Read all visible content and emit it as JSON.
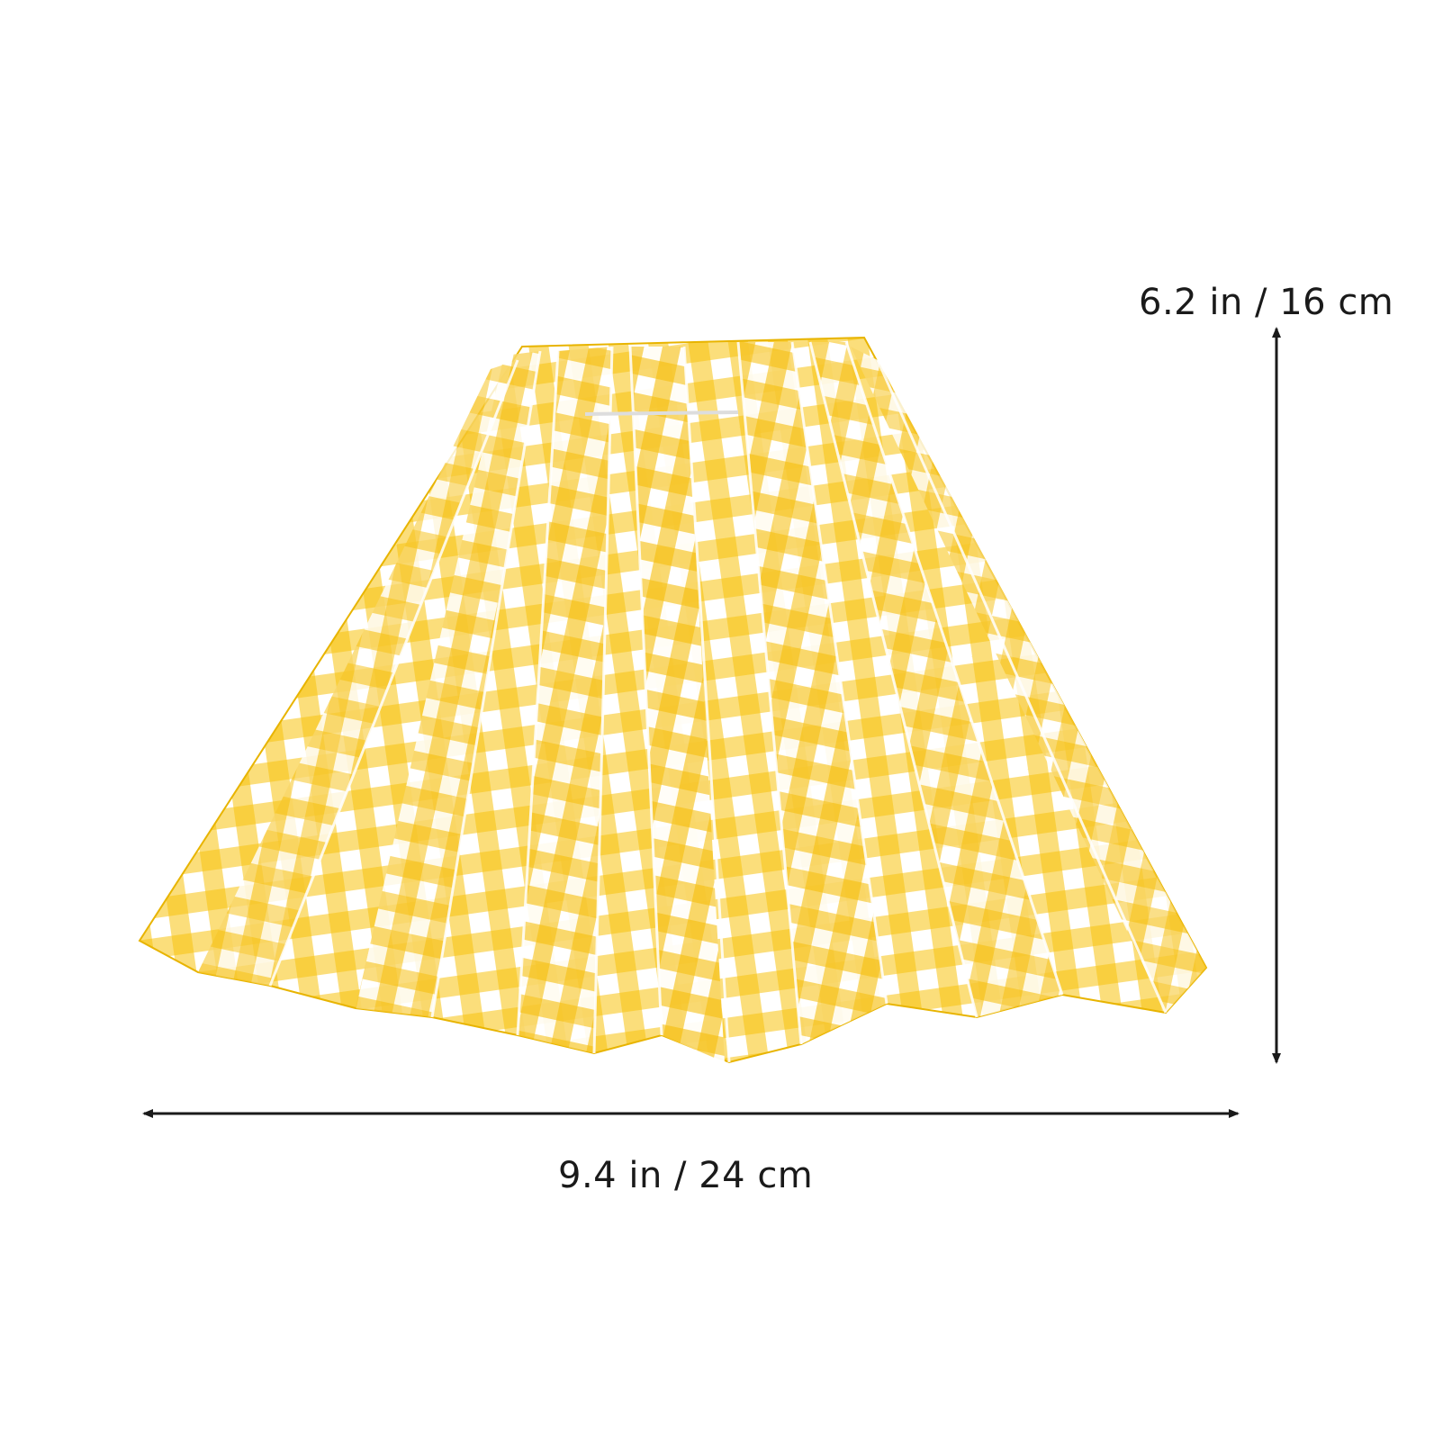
{
  "colors": {
    "gingham_yellow": "#f7c20e",
    "gingham_white": "#ffffff",
    "gingham_blend": "#fbe082",
    "arrow": "#1a1a1a"
  },
  "dimensions": {
    "height_label": "6.2 in / 16 cm",
    "width_label": "9.4 in / 24 cm"
  }
}
